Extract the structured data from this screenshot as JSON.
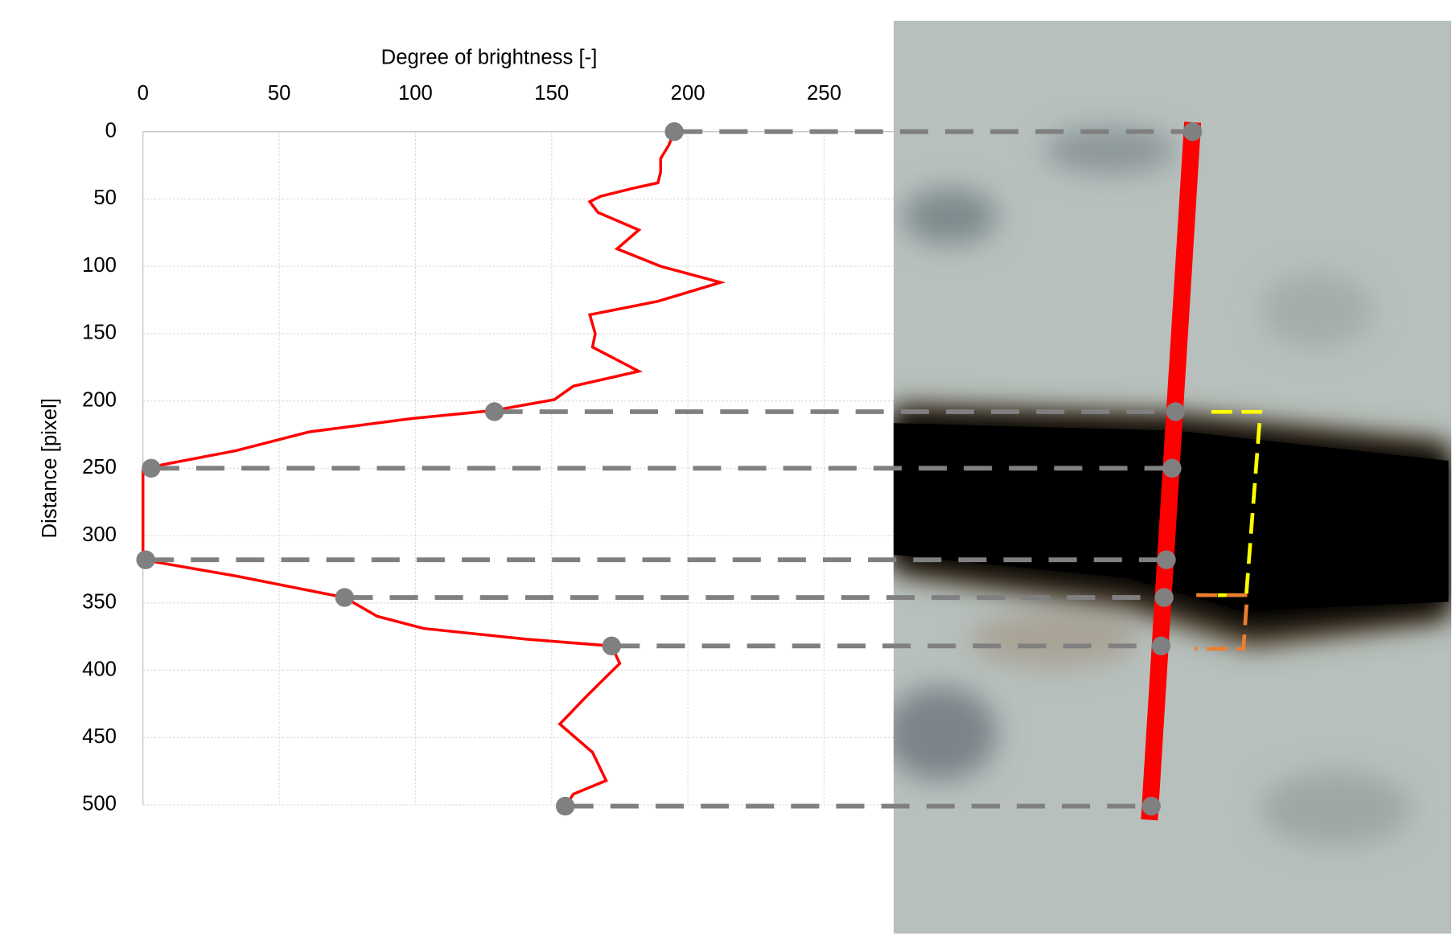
{
  "chart_data": {
    "type": "line",
    "x_label": "Degree of brightness [-]",
    "y_label": "Distance [pixel]",
    "color": "#ff0000",
    "values": [
      195,
      193,
      190,
      190,
      189,
      180,
      168,
      164,
      167,
      182,
      174,
      190,
      212,
      189,
      164,
      166,
      165,
      182,
      158,
      151,
      129,
      99,
      61,
      34,
      3,
      0,
      0,
      0,
      34,
      74,
      86,
      103,
      141,
      172,
      175,
      163,
      153,
      165,
      170,
      158,
      155
    ],
    "distance": [
      0,
      10,
      20,
      30,
      38,
      42,
      48,
      52,
      60,
      73,
      87,
      100,
      112,
      126,
      136,
      150,
      160,
      178,
      189,
      199,
      207,
      213,
      223,
      237,
      249,
      252,
      300,
      318,
      330,
      346,
      360,
      369,
      377,
      382,
      395,
      419,
      440,
      461,
      482,
      492,
      501
    ],
    "markers": {
      "color": "#808080",
      "values": [
        195,
        129,
        3,
        1,
        74,
        172,
        155
      ],
      "distance": [
        0,
        208,
        250,
        318,
        346,
        382,
        501
      ]
    },
    "xlim": [
      0,
      300
    ],
    "xticks": [
      0,
      50,
      100,
      150,
      200,
      250
    ],
    "ylim": [
      0,
      500
    ],
    "yticks": [
      0,
      50,
      100,
      150,
      200,
      250,
      300,
      350,
      400,
      450,
      500
    ],
    "y_inverted": true,
    "grid": true
  }
}
